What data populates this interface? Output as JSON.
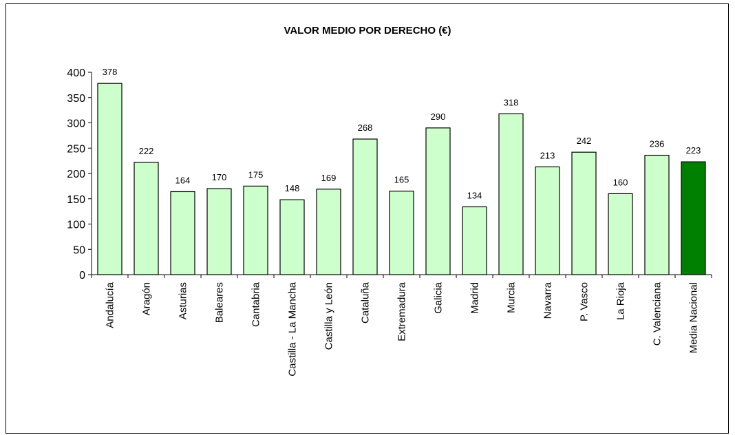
{
  "chart_data": {
    "type": "bar",
    "title": "VALOR MEDIO POR DERECHO (€)",
    "xlabel": "",
    "ylabel": "",
    "ylim": [
      0,
      400
    ],
    "yticks": [
      "0",
      "50",
      "100",
      "150",
      "200",
      "250",
      "300",
      "350",
      "400"
    ],
    "categories": [
      "Andalucía",
      "Aragón",
      "Asturias",
      "Baleares",
      "Cantabria",
      "Castilla - La Mancha",
      "Castilla y León",
      "Cataluña",
      "Extremadura",
      "Galicia",
      "Madrid",
      "Murcia",
      "Navarra",
      "P. Vasco",
      "La Rioja",
      "C. Valenciana",
      "Media Nacional"
    ],
    "values": [
      378,
      222,
      164,
      170,
      175,
      148,
      169,
      268,
      165,
      290,
      134,
      318,
      213,
      242,
      160,
      236,
      223
    ],
    "grid": false,
    "legend": "none",
    "colors": {
      "bar": "#ccffcc",
      "highlight": "#008000",
      "outline": "#000000"
    },
    "highlight_category": "Media Nacional"
  }
}
